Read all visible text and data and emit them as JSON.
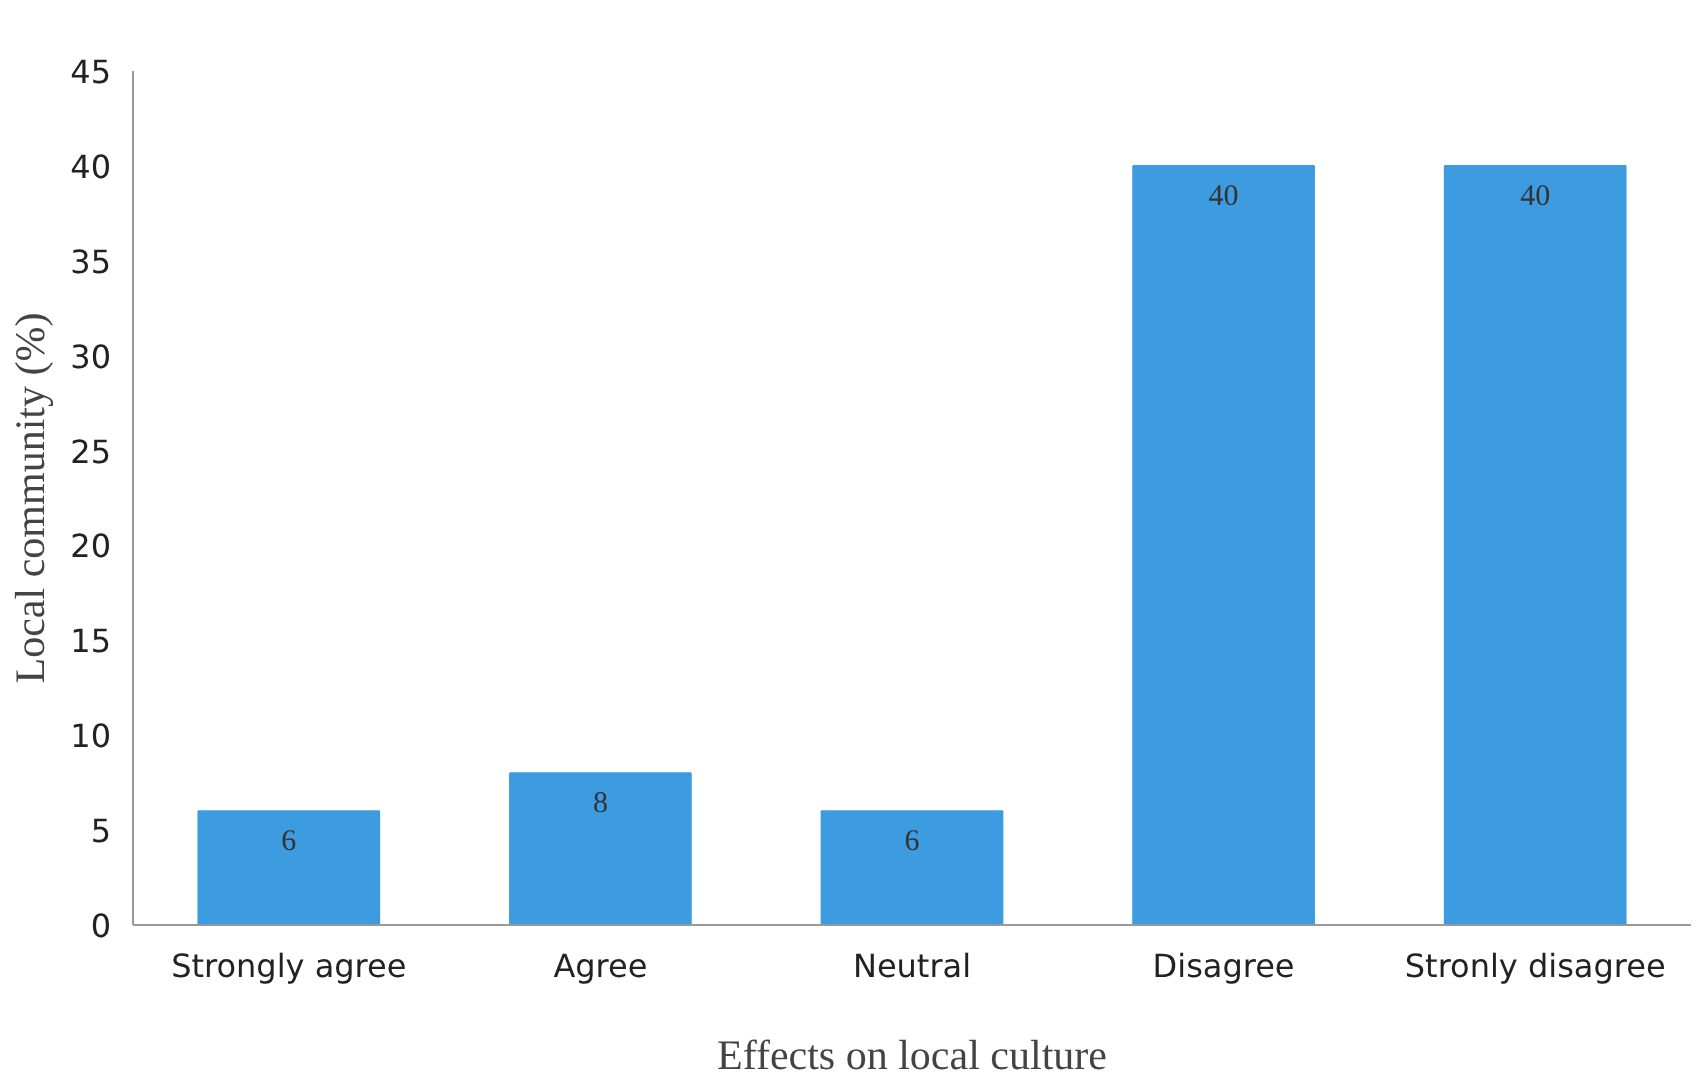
{
  "chart_data": {
    "type": "bar",
    "xlabel": "Effects on local culture",
    "ylabel": "Local community (%)",
    "categories": [
      "Strongly agree",
      "Agree",
      "Neutral",
      "Disagree",
      "Stronly disagree"
    ],
    "values": [
      6,
      8,
      6,
      40,
      40
    ],
    "color": "#3d9be0",
    "ylim": [
      0,
      45
    ],
    "yticks": [
      0,
      5,
      10,
      15,
      20,
      25,
      30,
      35,
      40,
      45
    ],
    "grid": false,
    "data_labels": true
  }
}
